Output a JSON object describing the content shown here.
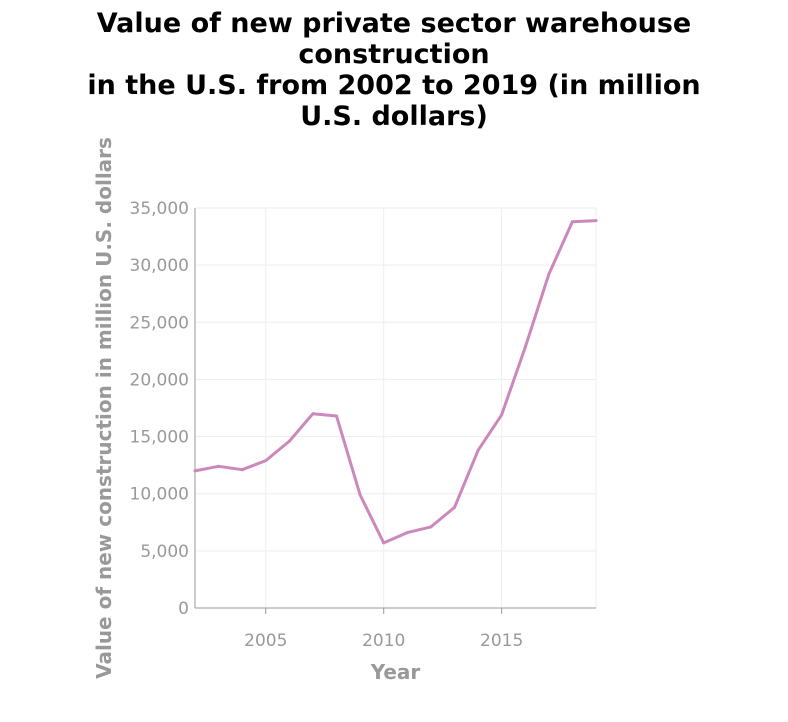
{
  "chart_data": {
    "type": "line",
    "title": "Value of new private sector warehouse construction\nin the U.S. from 2002 to 2019 (in million\nU.S. dollars)",
    "xlabel": "Year",
    "ylabel": "Value of new construction in million U.S. dollars",
    "xlim": [
      2002,
      2019
    ],
    "ylim": [
      0,
      35000
    ],
    "xticks": [
      2005,
      2010,
      2015
    ],
    "yticks": [
      0,
      5000,
      10000,
      15000,
      20000,
      25000,
      30000,
      35000
    ],
    "ytick_labels": [
      "0",
      "5,000",
      "10,000",
      "15,000",
      "20,000",
      "25,000",
      "30,000",
      "35,000"
    ],
    "grid": true,
    "line_color": "#cc88bb",
    "x": [
      2002,
      2003,
      2004,
      2005,
      2006,
      2007,
      2008,
      2009,
      2010,
      2011,
      2012,
      2013,
      2014,
      2015,
      2016,
      2017,
      2018,
      2019
    ],
    "y": [
      12000,
      12400,
      12100,
      12900,
      14600,
      17000,
      16800,
      9900,
      5700,
      6600,
      7100,
      8800,
      13800,
      16900,
      22800,
      29200,
      33800,
      33900
    ]
  }
}
